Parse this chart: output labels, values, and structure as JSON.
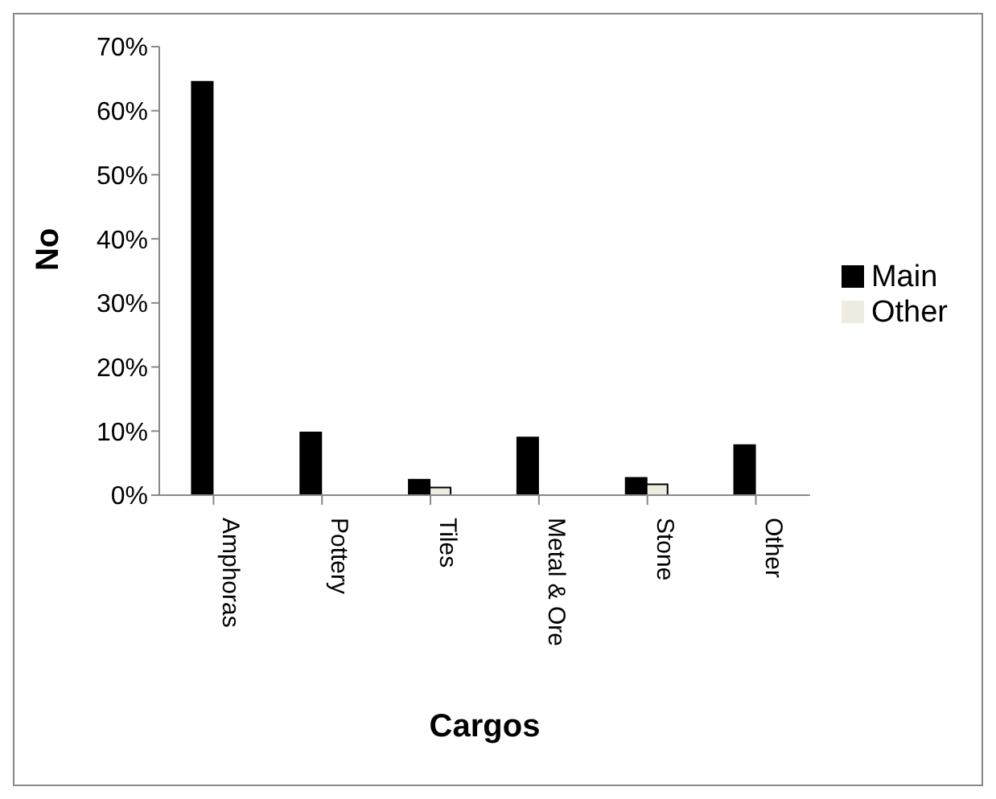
{
  "chart_data": {
    "type": "bar",
    "xlabel": "Cargos",
    "ylabel": "No",
    "categories": [
      "Amphoras",
      "Pottery",
      "Tiles",
      "Metal & Ore",
      "Stone",
      "Other"
    ],
    "series": [
      {
        "name": "Main",
        "color": "#000000",
        "values": [
          64.5,
          9.8,
          2.4,
          9,
          2.7,
          7.8
        ]
      },
      {
        "name": "Other",
        "color": "#eeece1",
        "values": [
          null,
          null,
          1.2,
          null,
          1.7,
          null
        ]
      }
    ],
    "ylim": [
      0,
      70
    ],
    "yticks": [
      {
        "value": 0,
        "label": "0%"
      },
      {
        "value": 10,
        "label": "10%"
      },
      {
        "value": 20,
        "label": "20%"
      },
      {
        "value": 30,
        "label": "30%"
      },
      {
        "value": 40,
        "label": "40%"
      },
      {
        "value": 50,
        "label": "50%"
      },
      {
        "value": 60,
        "label": "60%"
      },
      {
        "value": 70,
        "label": "70%"
      }
    ],
    "grid": false,
    "legend": "right"
  }
}
